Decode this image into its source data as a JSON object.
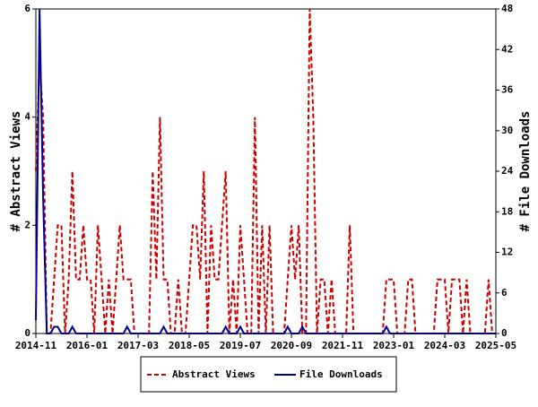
{
  "chart_data": {
    "type": "line",
    "categories": [
      "2014-11",
      null,
      null,
      null,
      null,
      null,
      null,
      null,
      null,
      null,
      null,
      null,
      null,
      null,
      "2016-01",
      null,
      null,
      null,
      null,
      null,
      null,
      null,
      null,
      null,
      null,
      null,
      null,
      null,
      "2017-03",
      null,
      null,
      null,
      null,
      null,
      null,
      null,
      null,
      null,
      null,
      null,
      null,
      null,
      "2018-05",
      null,
      null,
      null,
      null,
      null,
      null,
      null,
      null,
      null,
      null,
      null,
      null,
      null,
      "2019-07",
      null,
      null,
      null,
      null,
      null,
      null,
      null,
      null,
      null,
      null,
      null,
      null,
      null,
      "2020-09",
      null,
      null,
      null,
      null,
      null,
      null,
      null,
      null,
      null,
      null,
      null,
      null,
      null,
      "2021-11",
      null,
      null,
      null,
      null,
      null,
      null,
      null,
      null,
      null,
      null,
      null,
      null,
      null,
      "2023-01",
      null,
      null,
      null,
      null,
      null,
      null,
      null,
      null,
      null,
      null,
      null,
      null,
      null,
      "2024-03",
      null,
      null,
      null,
      null,
      null,
      null,
      null,
      null,
      null,
      null,
      null,
      null,
      null,
      "2025-05"
    ],
    "series": [
      {
        "name": "Abstract Views",
        "color": "#cc0000",
        "axis": "y",
        "values": [
          3,
          5,
          4,
          0,
          0,
          1,
          2,
          2,
          0,
          1,
          3,
          1,
          1,
          2,
          1,
          1,
          0,
          2,
          1,
          0,
          1,
          0,
          1,
          2,
          1,
          1,
          1,
          0,
          0,
          0,
          0,
          0,
          3,
          1,
          4,
          1,
          1,
          0,
          0,
          1,
          0,
          0,
          1,
          2,
          2,
          1,
          3,
          0,
          2,
          1,
          1,
          2,
          3,
          0,
          1,
          0,
          2,
          1,
          0,
          0,
          4,
          0,
          2,
          0,
          2,
          0,
          0,
          0,
          0,
          1,
          2,
          1,
          2,
          0,
          0,
          6,
          4,
          0,
          1,
          1,
          0,
          1,
          0,
          0,
          0,
          0,
          2,
          0,
          0,
          0,
          0,
          0,
          0,
          0,
          0,
          0,
          1,
          1,
          1,
          0,
          0,
          0,
          1,
          1,
          0,
          0,
          0,
          0,
          0,
          0,
          1,
          1,
          1,
          0,
          1,
          1,
          1,
          0,
          1,
          0,
          0,
          0,
          0,
          0,
          1,
          0,
          0
        ]
      },
      {
        "name": "File Downloads",
        "color": "#000099",
        "axis": "y2",
        "values": [
          2,
          48,
          20,
          0,
          0,
          1,
          1,
          0,
          0,
          0,
          1,
          0,
          0,
          0,
          0,
          0,
          0,
          0,
          0,
          0,
          0,
          0,
          0,
          0,
          0,
          1,
          0,
          0,
          0,
          0,
          0,
          0,
          0,
          0,
          0,
          1,
          0,
          0,
          0,
          0,
          0,
          0,
          0,
          0,
          0,
          0,
          0,
          0,
          0,
          0,
          0,
          0,
          1,
          0,
          0,
          0,
          1,
          0,
          0,
          0,
          0,
          0,
          0,
          0,
          0,
          0,
          0,
          0,
          0,
          1,
          0,
          0,
          0,
          1,
          0,
          0,
          0,
          0,
          0,
          0,
          0,
          0,
          0,
          0,
          0,
          0,
          0,
          0,
          0,
          0,
          0,
          0,
          0,
          0,
          0,
          0,
          1,
          0,
          0,
          0,
          0,
          0,
          0,
          0,
          0,
          0,
          0,
          0,
          0,
          0,
          0,
          0,
          0,
          0,
          0,
          0,
          0,
          0,
          0,
          0,
          0,
          0,
          0,
          0,
          0,
          0,
          0
        ]
      }
    ],
    "y_label": "# Abstract Views",
    "y2_label": "# File Downloads",
    "ylim": [
      0,
      6
    ],
    "yticks": [
      0,
      2,
      4,
      6
    ],
    "y2lim": [
      0,
      48
    ],
    "y2ticks": [
      0,
      6,
      12,
      18,
      24,
      30,
      36,
      42,
      48
    ]
  }
}
